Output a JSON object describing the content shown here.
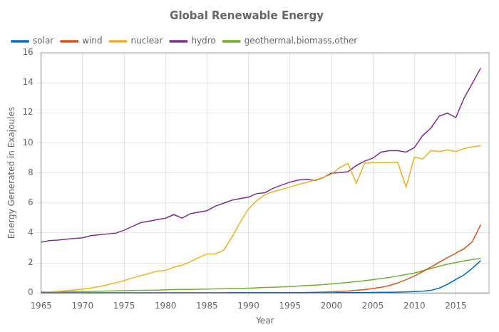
{
  "chart_data": {
    "type": "line",
    "title": "Global Renewable Energy",
    "xlabel": "Year",
    "ylabel": "Energy Generated in Exajoules",
    "x": [
      1965,
      1966,
      1967,
      1968,
      1969,
      1970,
      1971,
      1972,
      1973,
      1974,
      1975,
      1976,
      1977,
      1978,
      1979,
      1980,
      1981,
      1982,
      1983,
      1984,
      1985,
      1986,
      1987,
      1988,
      1989,
      1990,
      1991,
      1992,
      1993,
      1994,
      1995,
      1996,
      1997,
      1998,
      1999,
      2000,
      2001,
      2002,
      2003,
      2004,
      2005,
      2006,
      2007,
      2008,
      2009,
      2010,
      2011,
      2012,
      2013,
      2014,
      2015,
      2016,
      2017,
      2018
    ],
    "series": [
      {
        "name": "solar",
        "color": "#0072BD",
        "values": [
          0.002,
          0.002,
          0.002,
          0.002,
          0.002,
          0.002,
          0.002,
          0.002,
          0.002,
          0.002,
          0.002,
          0.002,
          0.002,
          0.002,
          0.002,
          0.002,
          0.002,
          0.002,
          0.002,
          0.002,
          0.003,
          0.003,
          0.003,
          0.004,
          0.004,
          0.005,
          0.005,
          0.006,
          0.006,
          0.007,
          0.008,
          0.009,
          0.01,
          0.011,
          0.013,
          0.015,
          0.017,
          0.019,
          0.022,
          0.026,
          0.032,
          0.04,
          0.05,
          0.06,
          0.07,
          0.09,
          0.12,
          0.18,
          0.32,
          0.58,
          0.9,
          1.2,
          1.65,
          2.15
        ]
      },
      {
        "name": "wind",
        "color": "#D95319",
        "values": [
          0.002,
          0.002,
          0.002,
          0.002,
          0.002,
          0.002,
          0.002,
          0.002,
          0.002,
          0.002,
          0.002,
          0.002,
          0.002,
          0.002,
          0.002,
          0.002,
          0.002,
          0.002,
          0.002,
          0.002,
          0.003,
          0.003,
          0.004,
          0.005,
          0.006,
          0.008,
          0.01,
          0.012,
          0.015,
          0.018,
          0.022,
          0.027,
          0.034,
          0.045,
          0.06,
          0.08,
          0.1,
          0.13,
          0.17,
          0.22,
          0.29,
          0.38,
          0.5,
          0.67,
          0.88,
          1.13,
          1.42,
          1.72,
          2.05,
          2.35,
          2.65,
          2.95,
          3.42,
          4.55
        ]
      },
      {
        "name": "nuclear",
        "color": "#EDB120",
        "values": [
          0.04,
          0.07,
          0.11,
          0.15,
          0.2,
          0.26,
          0.33,
          0.42,
          0.54,
          0.68,
          0.82,
          1.0,
          1.15,
          1.3,
          1.45,
          1.5,
          1.72,
          1.85,
          2.08,
          2.35,
          2.6,
          2.6,
          2.85,
          3.7,
          4.7,
          5.6,
          6.15,
          6.55,
          6.75,
          6.9,
          7.05,
          7.22,
          7.35,
          7.52,
          7.7,
          7.9,
          8.35,
          8.62,
          7.3,
          8.65,
          8.68,
          8.68,
          8.68,
          8.7,
          7.05,
          9.05,
          8.92,
          9.48,
          9.42,
          9.52,
          9.42,
          9.62,
          9.72,
          9.82
        ]
      },
      {
        "name": "hydro",
        "color": "#7E2F8E",
        "values": [
          3.38,
          3.48,
          3.52,
          3.58,
          3.63,
          3.68,
          3.82,
          3.88,
          3.93,
          3.98,
          4.18,
          4.43,
          4.68,
          4.78,
          4.88,
          4.98,
          5.22,
          4.98,
          5.28,
          5.38,
          5.48,
          5.78,
          5.98,
          6.18,
          6.28,
          6.38,
          6.62,
          6.68,
          6.98,
          7.18,
          7.38,
          7.52,
          7.58,
          7.48,
          7.68,
          7.98,
          8.02,
          8.08,
          8.48,
          8.78,
          8.98,
          9.38,
          9.48,
          9.48,
          9.38,
          9.68,
          10.48,
          10.98,
          11.78,
          11.98,
          11.68,
          12.98,
          13.98,
          14.98
        ]
      },
      {
        "name": "geothermal,biomass,other",
        "color": "#77AC30",
        "values": [
          0.07,
          0.07,
          0.08,
          0.08,
          0.09,
          0.1,
          0.11,
          0.12,
          0.13,
          0.14,
          0.15,
          0.16,
          0.17,
          0.18,
          0.19,
          0.21,
          0.22,
          0.23,
          0.24,
          0.25,
          0.26,
          0.27,
          0.28,
          0.29,
          0.3,
          0.32,
          0.34,
          0.36,
          0.38,
          0.4,
          0.43,
          0.46,
          0.49,
          0.52,
          0.55,
          0.6,
          0.65,
          0.7,
          0.76,
          0.82,
          0.89,
          0.96,
          1.03,
          1.13,
          1.23,
          1.33,
          1.48,
          1.63,
          1.78,
          1.92,
          2.03,
          2.13,
          2.23,
          2.3
        ]
      }
    ],
    "xlim": [
      1965,
      2019
    ],
    "xticks": [
      1965,
      1970,
      1975,
      1980,
      1985,
      1990,
      1995,
      2000,
      2005,
      2010,
      2015
    ],
    "ylim": [
      0,
      16
    ],
    "yticks": [
      0,
      2,
      4,
      6,
      8,
      10,
      12,
      14,
      16
    ],
    "grid": true,
    "legend": "upper left"
  }
}
